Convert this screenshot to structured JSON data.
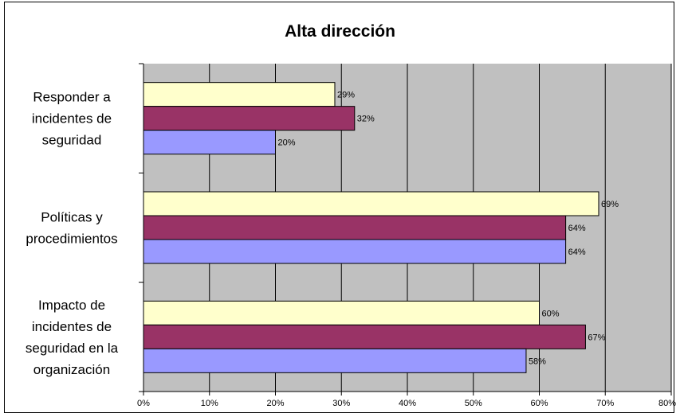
{
  "chart_data": {
    "type": "bar",
    "orientation": "horizontal",
    "title": "Alta dirección",
    "categories": [
      [
        "Responder a",
        "incidentes de",
        "seguridad"
      ],
      [
        "Políticas y",
        "procedimientos"
      ],
      [
        "Impacto de",
        "incidentes de",
        "seguridad en la",
        "organización"
      ]
    ],
    "series": [
      {
        "values": [
          29,
          69,
          60
        ],
        "color": "#FFFFCC"
      },
      {
        "values": [
          32,
          64,
          67
        ],
        "color": "#993366"
      },
      {
        "values": [
          20,
          64,
          58
        ],
        "color": "#9999FF"
      }
    ],
    "data_labels": [
      [
        "29%",
        "69%",
        "60%"
      ],
      [
        "32%",
        "64%",
        "67%"
      ],
      [
        "20%",
        "64%",
        "58%"
      ]
    ],
    "x_ticks": [
      "0%",
      "10%",
      "20%",
      "30%",
      "40%",
      "50%",
      "60%",
      "70%",
      "80%"
    ],
    "xlim": [
      0,
      80
    ],
    "grid": true,
    "plot_background": "#C0C0C0",
    "gridline_color": "#000000",
    "legend": false
  }
}
